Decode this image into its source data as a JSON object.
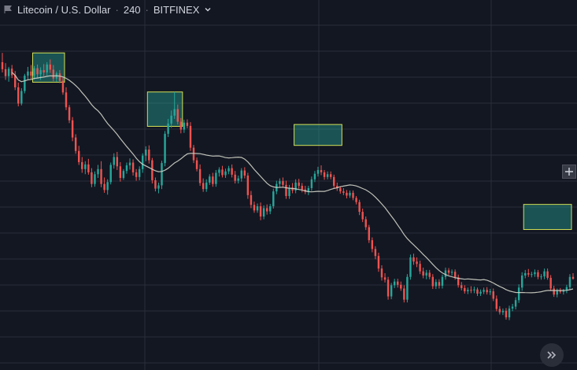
{
  "header": {
    "symbol": "Litecoin / U.S. Dollar",
    "interval": "240",
    "exchange": "BITFINEX",
    "dropdown_icon": "chevron-down-icon",
    "flag_icon": "flag-icon"
  },
  "controls": {
    "add_icon": "plus-icon",
    "scroll_icon": "double-chevron-right-icon"
  },
  "colors": {
    "background": "#131722",
    "grid": "#2a2e39",
    "up": "#26a69a",
    "down": "#ef5350",
    "moving_average": "#d1d4c8",
    "highlight_fill": "#26a69a",
    "highlight_border": "#d4e157"
  },
  "chart_data": {
    "type": "candlestick",
    "grid": true,
    "moving_average": true,
    "title": "",
    "xlabel": "",
    "ylabel": "",
    "highlight_zones": [
      {
        "start_bar": 10,
        "end_bar": 19,
        "high": 86.0,
        "low": 79.7
      },
      {
        "start_bar": 46,
        "end_bar": 56,
        "high": 77.6,
        "low": 70.2
      },
      {
        "start_bar": 92,
        "end_bar": 106,
        "high": 70.6,
        "low": 66.1
      },
      {
        "start_bar": 164,
        "end_bar": 178,
        "high": 53.4,
        "low": 48.0
      }
    ],
    "candles": [
      [
        84.0,
        86.0,
        81.8,
        82.5
      ],
      [
        82.5,
        83.8,
        80.2,
        81.0
      ],
      [
        81.0,
        83.0,
        79.8,
        82.6
      ],
      [
        82.6,
        83.4,
        80.6,
        81.2
      ],
      [
        81.2,
        82.1,
        78.0,
        78.6
      ],
      [
        78.6,
        79.6,
        74.5,
        75.1
      ],
      [
        75.1,
        78.4,
        74.7,
        77.8
      ],
      [
        77.8,
        81.5,
        77.3,
        81.1
      ],
      [
        81.1,
        83.0,
        80.3,
        82.0
      ],
      [
        82.0,
        83.4,
        80.4,
        81.1
      ],
      [
        81.1,
        83.2,
        80.3,
        82.7
      ],
      [
        82.7,
        83.5,
        80.6,
        81.4
      ],
      [
        81.4,
        82.9,
        80.2,
        82.3
      ],
      [
        82.3,
        83.6,
        81.0,
        81.8
      ],
      [
        81.8,
        84.0,
        81.2,
        83.5
      ],
      [
        83.5,
        84.6,
        81.7,
        82.4
      ],
      [
        82.4,
        83.4,
        79.9,
        80.5
      ],
      [
        80.5,
        82.0,
        79.8,
        81.6
      ],
      [
        81.6,
        82.3,
        79.5,
        80.0
      ],
      [
        80.0,
        80.8,
        77.0,
        77.5
      ],
      [
        77.5,
        78.6,
        73.7,
        74.3
      ],
      [
        74.3,
        74.8,
        70.9,
        71.5
      ],
      [
        71.5,
        72.2,
        67.0,
        67.8
      ],
      [
        67.8,
        68.5,
        64.3,
        64.9
      ],
      [
        64.9,
        66.0,
        61.9,
        62.5
      ],
      [
        62.5,
        63.6,
        60.2,
        61.0
      ],
      [
        61.0,
        62.7,
        59.9,
        62.0
      ],
      [
        62.0,
        63.2,
        59.8,
        60.3
      ],
      [
        60.3,
        61.2,
        57.1,
        57.8
      ],
      [
        57.8,
        60.5,
        57.2,
        59.9
      ],
      [
        59.9,
        61.9,
        59.1,
        61.0
      ],
      [
        61.0,
        62.7,
        57.1,
        57.8
      ],
      [
        57.8,
        59.2,
        55.9,
        56.5
      ],
      [
        56.5,
        58.8,
        55.5,
        58.2
      ],
      [
        58.2,
        62.4,
        57.7,
        61.9
      ],
      [
        61.9,
        64.4,
        61.1,
        63.6
      ],
      [
        63.6,
        64.7,
        60.8,
        61.6
      ],
      [
        61.6,
        62.5,
        58.3,
        59.1
      ],
      [
        59.1,
        61.0,
        58.7,
        60.6
      ],
      [
        60.6,
        62.4,
        60.0,
        61.8
      ],
      [
        61.8,
        63.3,
        60.9,
        62.4
      ],
      [
        62.4,
        63.1,
        59.6,
        60.3
      ],
      [
        60.3,
        61.0,
        58.5,
        59.3
      ],
      [
        59.3,
        61.6,
        58.6,
        61.0
      ],
      [
        61.0,
        64.4,
        60.2,
        63.9
      ],
      [
        63.9,
        65.9,
        62.7,
        65.2
      ],
      [
        65.2,
        66.1,
        62.2,
        62.9
      ],
      [
        62.9,
        63.4,
        57.9,
        58.6
      ],
      [
        58.6,
        59.2,
        56.2,
        56.8
      ],
      [
        56.8,
        58.1,
        55.8,
        57.5
      ],
      [
        57.5,
        62.8,
        56.7,
        62.3
      ],
      [
        62.3,
        69.2,
        61.6,
        68.6
      ],
      [
        68.6,
        71.8,
        67.9,
        70.8
      ],
      [
        70.8,
        73.6,
        69.9,
        72.5
      ],
      [
        72.5,
        77.6,
        71.8,
        73.9
      ],
      [
        73.9,
        74.9,
        70.6,
        71.2
      ],
      [
        71.2,
        72.0,
        68.7,
        69.5
      ],
      [
        69.5,
        71.6,
        68.8,
        71.0
      ],
      [
        71.0,
        71.7,
        69.8,
        70.3
      ],
      [
        70.3,
        71.1,
        64.9,
        65.6
      ],
      [
        65.6,
        66.2,
        62.3,
        62.9
      ],
      [
        62.9,
        63.5,
        60.5,
        61.0
      ],
      [
        61.0,
        62.0,
        57.4,
        58.0
      ],
      [
        58.0,
        59.0,
        56.1,
        56.7
      ],
      [
        56.7,
        58.8,
        56.1,
        58.1
      ],
      [
        58.1,
        59.9,
        57.6,
        59.4
      ],
      [
        59.4,
        60.2,
        57.2,
        57.8
      ],
      [
        57.8,
        60.8,
        57.2,
        60.2
      ],
      [
        60.2,
        61.4,
        59.4,
        60.9
      ],
      [
        60.9,
        61.7,
        59.2,
        59.7
      ],
      [
        59.7,
        61.1,
        59.1,
        60.5
      ],
      [
        60.5,
        61.7,
        59.9,
        61.2
      ],
      [
        61.2,
        62.0,
        59.2,
        59.8
      ],
      [
        59.8,
        60.6,
        57.9,
        58.5
      ],
      [
        58.5,
        59.6,
        57.9,
        59.0
      ],
      [
        59.0,
        61.2,
        58.3,
        60.7
      ],
      [
        60.7,
        61.4,
        59.0,
        59.6
      ],
      [
        59.6,
        60.2,
        54.6,
        55.4
      ],
      [
        55.4,
        56.3,
        52.6,
        53.3
      ],
      [
        53.3,
        54.0,
        51.6,
        52.1
      ],
      [
        52.1,
        53.6,
        51.6,
        53.0
      ],
      [
        53.0,
        53.8,
        50.0,
        50.8
      ],
      [
        50.8,
        53.2,
        50.2,
        52.6
      ],
      [
        52.6,
        53.4,
        51.2,
        51.9
      ],
      [
        51.9,
        53.5,
        51.3,
        53.0
      ],
      [
        53.0,
        56.8,
        52.5,
        56.2
      ],
      [
        56.2,
        58.5,
        55.6,
        57.8
      ],
      [
        57.8,
        59.0,
        57.1,
        58.4
      ],
      [
        58.4,
        59.2,
        57.1,
        57.6
      ],
      [
        57.6,
        58.5,
        54.6,
        55.2
      ],
      [
        55.2,
        57.6,
        54.6,
        57.0
      ],
      [
        57.0,
        58.0,
        55.8,
        56.4
      ],
      [
        56.4,
        58.8,
        55.8,
        58.1
      ],
      [
        58.1,
        58.9,
        56.8,
        57.4
      ],
      [
        57.4,
        58.0,
        56.0,
        56.6
      ],
      [
        56.6,
        57.4,
        55.6,
        56.1
      ],
      [
        56.1,
        57.4,
        55.4,
        56.9
      ],
      [
        56.9,
        59.4,
        56.3,
        58.8
      ],
      [
        58.8,
        60.6,
        58.2,
        60.0
      ],
      [
        60.0,
        61.5,
        59.4,
        60.8
      ],
      [
        60.8,
        61.8,
        59.7,
        60.3
      ],
      [
        60.3,
        60.8,
        58.7,
        59.3
      ],
      [
        59.3,
        60.5,
        58.8,
        59.9
      ],
      [
        59.9,
        60.5,
        58.8,
        59.3
      ],
      [
        59.3,
        59.8,
        56.8,
        57.4
      ],
      [
        57.4,
        58.1,
        56.3,
        56.9
      ],
      [
        56.9,
        57.3,
        55.7,
        56.2
      ],
      [
        56.2,
        56.9,
        55.4,
        55.9
      ],
      [
        55.9,
        56.5,
        54.7,
        55.3
      ],
      [
        55.3,
        56.4,
        54.8,
        55.9
      ],
      [
        55.9,
        56.4,
        54.3,
        54.8
      ],
      [
        54.8,
        55.2,
        53.4,
        53.9
      ],
      [
        53.9,
        54.4,
        51.1,
        51.8
      ],
      [
        51.8,
        52.5,
        49.6,
        50.2
      ],
      [
        50.2,
        50.8,
        47.9,
        48.5
      ],
      [
        48.5,
        49.0,
        45.1,
        45.7
      ],
      [
        45.7,
        46.3,
        43.1,
        43.8
      ],
      [
        43.8,
        44.4,
        41.6,
        42.3
      ],
      [
        42.3,
        43.0,
        38.9,
        39.6
      ],
      [
        39.6,
        40.3,
        37.0,
        37.7
      ],
      [
        37.7,
        38.6,
        36.6,
        37.2
      ],
      [
        37.2,
        37.8,
        32.9,
        33.6
      ],
      [
        33.6,
        36.5,
        33.0,
        36.0
      ],
      [
        36.0,
        37.4,
        35.4,
        36.8
      ],
      [
        36.8,
        37.4,
        35.5,
        36.1
      ],
      [
        36.1,
        36.8,
        34.8,
        35.3
      ],
      [
        35.3,
        36.0,
        32.3,
        32.9
      ],
      [
        32.9,
        38.4,
        32.3,
        37.8
      ],
      [
        37.8,
        42.6,
        37.2,
        42.0
      ],
      [
        42.0,
        42.8,
        40.4,
        41.1
      ],
      [
        41.1,
        42.0,
        39.9,
        40.6
      ],
      [
        40.6,
        41.3,
        38.4,
        39.0
      ],
      [
        39.0,
        39.8,
        37.5,
        38.1
      ],
      [
        38.1,
        39.3,
        37.3,
        38.7
      ],
      [
        38.7,
        39.3,
        37.3,
        37.8
      ],
      [
        37.8,
        38.4,
        35.2,
        35.8
      ],
      [
        35.8,
        37.3,
        35.2,
        36.7
      ],
      [
        36.7,
        37.3,
        35.3,
        35.9
      ],
      [
        35.9,
        38.3,
        35.3,
        37.8
      ],
      [
        37.8,
        39.8,
        37.2,
        39.2
      ],
      [
        39.2,
        39.7,
        38.2,
        38.7
      ],
      [
        38.7,
        39.4,
        38.1,
        38.9
      ],
      [
        38.9,
        39.4,
        37.2,
        37.7
      ],
      [
        37.7,
        38.3,
        35.5,
        36.0
      ],
      [
        36.0,
        36.7,
        34.9,
        35.4
      ],
      [
        35.4,
        36.0,
        34.2,
        34.7
      ],
      [
        34.7,
        35.5,
        34.1,
        35.0
      ],
      [
        35.0,
        35.8,
        34.3,
        34.9
      ],
      [
        34.9,
        35.7,
        34.3,
        35.1
      ],
      [
        35.1,
        35.5,
        33.7,
        34.2
      ],
      [
        34.2,
        35.1,
        33.7,
        34.6
      ],
      [
        34.6,
        35.5,
        34.1,
        35.0
      ],
      [
        35.0,
        35.6,
        34.0,
        34.5
      ],
      [
        34.5,
        35.2,
        33.9,
        34.7
      ],
      [
        34.7,
        35.3,
        32.6,
        33.1
      ],
      [
        33.1,
        33.8,
        30.4,
        30.9
      ],
      [
        30.9,
        31.5,
        29.7,
        30.2
      ],
      [
        30.2,
        31.0,
        29.6,
        30.5
      ],
      [
        30.5,
        31.1,
        28.6,
        29.1
      ],
      [
        29.1,
        31.6,
        28.5,
        31.0
      ],
      [
        31.0,
        32.0,
        30.4,
        31.4
      ],
      [
        31.4,
        33.4,
        30.8,
        32.8
      ],
      [
        32.8,
        36.2,
        32.2,
        35.5
      ],
      [
        35.5,
        38.8,
        34.8,
        38.1
      ],
      [
        38.1,
        39.3,
        37.5,
        38.6
      ],
      [
        38.6,
        39.5,
        37.8,
        38.3
      ],
      [
        38.3,
        38.9,
        37.7,
        38.4
      ],
      [
        38.4,
        39.4,
        37.8,
        38.8
      ],
      [
        38.8,
        39.3,
        37.3,
        37.8
      ],
      [
        37.8,
        38.4,
        37.2,
        37.9
      ],
      [
        37.9,
        39.6,
        37.3,
        39.0
      ],
      [
        39.0,
        39.6,
        37.2,
        37.6
      ],
      [
        37.6,
        38.2,
        34.8,
        35.3
      ],
      [
        35.3,
        35.9,
        33.5,
        34.0
      ],
      [
        34.0,
        35.3,
        33.4,
        34.8
      ],
      [
        34.8,
        35.4,
        34.2,
        34.6
      ],
      [
        34.6,
        35.2,
        34.0,
        34.9
      ],
      [
        34.9,
        36.1,
        34.3,
        35.6
      ],
      [
        35.6,
        38.4,
        35.0,
        37.8
      ],
      [
        37.8,
        38.6,
        37.2,
        37.4
      ]
    ]
  }
}
